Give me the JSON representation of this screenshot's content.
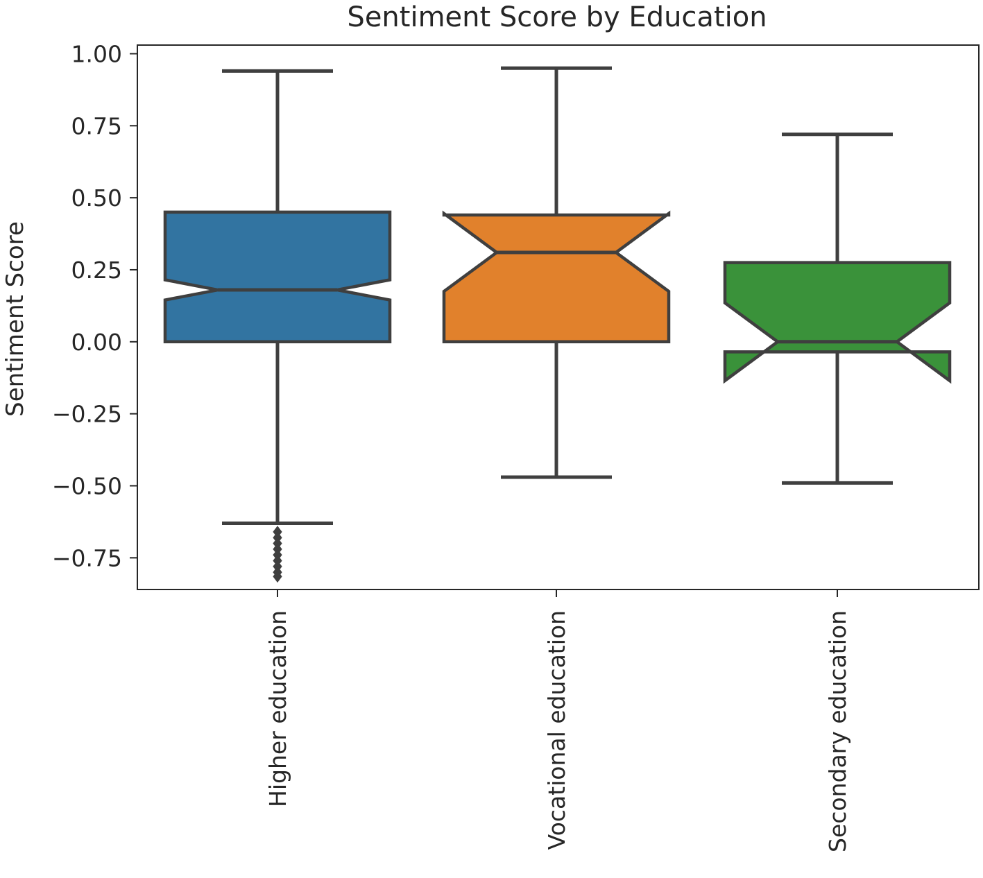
{
  "chart_data": {
    "type": "box",
    "notched": true,
    "title": "Sentiment Score by Education",
    "xlabel": "",
    "ylabel": "Sentiment Score",
    "ylim": [
      -0.86,
      1.03
    ],
    "yticks": [
      1.0,
      0.75,
      0.5,
      0.25,
      0.0,
      -0.25,
      -0.5,
      -0.75
    ],
    "ytick_labels": [
      "1.00",
      "0.75",
      "0.50",
      "0.25",
      "0.00",
      "−0.25",
      "−0.50",
      "−0.75"
    ],
    "grid": false,
    "legend": "none",
    "categories": [
      "Higher education",
      "Vocational education",
      "Secondary education"
    ],
    "boxes": [
      {
        "category": "Higher education",
        "color": "#3274a1",
        "whisker_low": -0.63,
        "q1": 0.0,
        "median": 0.18,
        "q3": 0.45,
        "whisker_high": 0.94,
        "notch_low": 0.145,
        "notch_high": 0.215,
        "outliers": [
          -0.66,
          -0.68,
          -0.7,
          -0.72,
          -0.74,
          -0.76,
          -0.78,
          -0.8,
          -0.815
        ]
      },
      {
        "category": "Vocational education",
        "color": "#e1812c",
        "whisker_low": -0.47,
        "q1": 0.0,
        "median": 0.31,
        "q3": 0.44,
        "whisker_high": 0.95,
        "notch_low": 0.175,
        "notch_high": 0.445,
        "outliers": []
      },
      {
        "category": "Secondary education",
        "color": "#3a923a",
        "whisker_low": -0.49,
        "q1": -0.035,
        "median": 0.0,
        "q3": 0.275,
        "whisker_high": 0.72,
        "notch_low": -0.135,
        "notch_high": 0.135,
        "outliers": []
      }
    ]
  }
}
